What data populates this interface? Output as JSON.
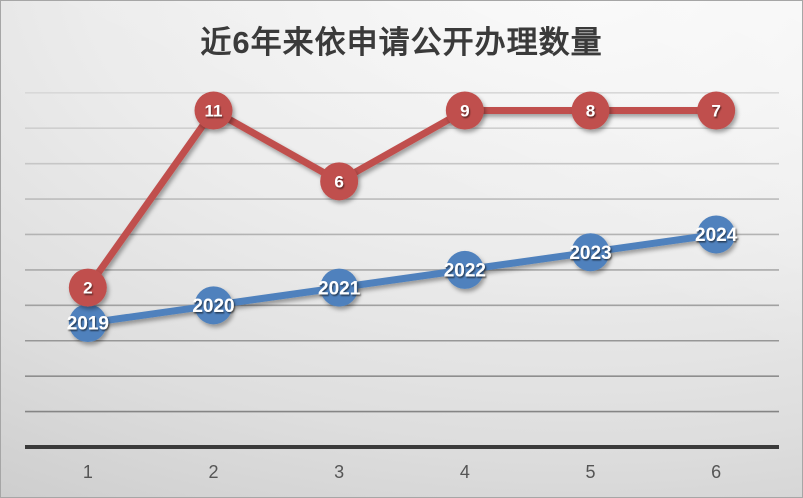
{
  "chart_data": {
    "type": "line",
    "title": "近6年来依申请公开办理数量",
    "x_axis": {
      "tick_labels": [
        "1",
        "2",
        "3",
        "4",
        "5",
        "6"
      ],
      "label_color": "#555555",
      "axis_color": "#3a3a3a"
    },
    "y_axis": {
      "min": 2012,
      "max": 2032,
      "major_unit": 2,
      "tick_labels_visible": false
    },
    "grid": {
      "visible": true,
      "values": [
        2014,
        2016,
        2018,
        2020,
        2022,
        2024,
        2026,
        2028,
        2030,
        2032
      ],
      "color_top": "#d8d8d8",
      "color_bottom": "#858585"
    },
    "legend": {
      "visible": false
    },
    "series": [
      {
        "name": "years-line",
        "color": "#4f81bd",
        "marker": "circle",
        "point_labels": [
          "2019",
          "2020",
          "2021",
          "2022",
          "2023",
          "2024"
        ],
        "values": [
          2019,
          2020,
          2021,
          2022,
          2023,
          2024
        ],
        "plot_values": [
          2019,
          2020,
          2021,
          2022,
          2023,
          2024
        ],
        "label_color": "#ffffff"
      },
      {
        "name": "counts-line",
        "color": "#c0504d",
        "marker": "circle",
        "point_labels": [
          "2",
          "11",
          "6",
          "9",
          "8",
          "7"
        ],
        "values": [
          2,
          11,
          6,
          9,
          8,
          7
        ],
        "plot_values": [
          2021,
          2031,
          2027,
          2031,
          2031,
          2031
        ],
        "stacked_on": "years-line",
        "label_color": "#ffffff"
      }
    ],
    "counts_by_year": {
      "2019": 2,
      "2020": 11,
      "2021": 6,
      "2022": 9,
      "2023": 8,
      "2024": 7
    },
    "title_color": "#3a3a3a"
  }
}
